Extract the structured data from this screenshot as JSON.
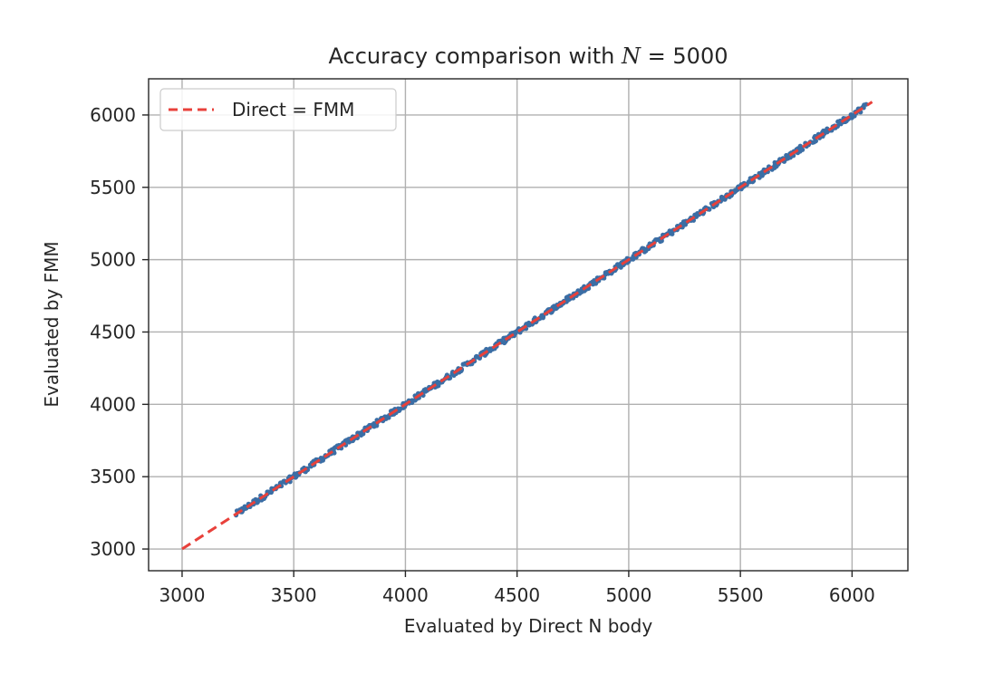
{
  "chart_data": {
    "type": "scatter",
    "title": {
      "prefix": "Accuracy comparison with ",
      "math_var": "N",
      "math_rest": " = 5000"
    },
    "xlabel": "Evaluated by Direct N body",
    "ylabel": "Evaluated by FMM",
    "xlim": [
      2850,
      6250
    ],
    "ylim": [
      2850,
      6250
    ],
    "xticks": [
      3000,
      3500,
      4000,
      4500,
      5000,
      5500,
      6000
    ],
    "yticks": [
      3000,
      3500,
      4000,
      4500,
      5000,
      5500,
      6000
    ],
    "grid": true,
    "legend_placement": "upper-left",
    "series": [
      {
        "kind": "scatter",
        "color": "#3b6ea5",
        "x_range": [
          3240,
          6060
        ],
        "y_range": [
          3240,
          6060
        ],
        "count": 5000
      },
      {
        "kind": "line",
        "name": "Direct = FMM",
        "color": "#e8413b",
        "dashed": true,
        "x": [
          3000,
          6090
        ],
        "y": [
          3000,
          6090
        ]
      }
    ]
  }
}
